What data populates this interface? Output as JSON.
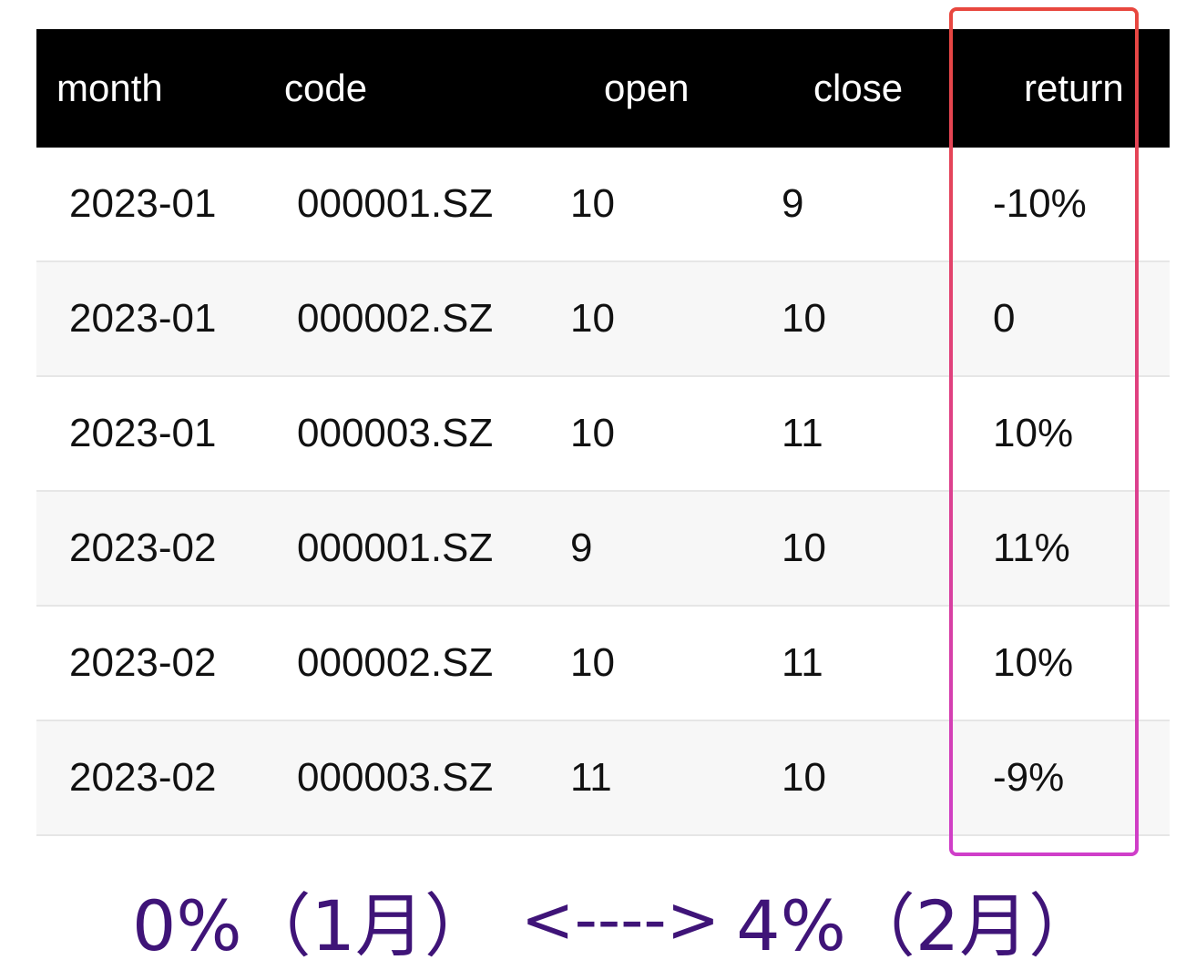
{
  "table": {
    "headers": [
      "month",
      "code",
      "open",
      "close",
      "return"
    ],
    "rows": [
      [
        "2023-01",
        "000001.SZ",
        "10",
        "9",
        "-10%"
      ],
      [
        "2023-01",
        "000002.SZ",
        "10",
        "10",
        "0"
      ],
      [
        "2023-01",
        "000003.SZ",
        "10",
        "11",
        "10%"
      ],
      [
        "2023-02",
        "000001.SZ",
        "9",
        "10",
        "11%"
      ],
      [
        "2023-02",
        "000002.SZ",
        "10",
        "11",
        "10%"
      ],
      [
        "2023-02",
        "000003.SZ",
        "11",
        "10",
        "-9%"
      ]
    ]
  },
  "highlight": {
    "column": "return",
    "gradient_colors": [
      "#e8473e",
      "#e0407f",
      "#cf3ec9"
    ]
  },
  "caption": {
    "left": "0%（1月）",
    "arrow": "<---->",
    "right": "4%（2月）",
    "color": "#3f1478"
  }
}
